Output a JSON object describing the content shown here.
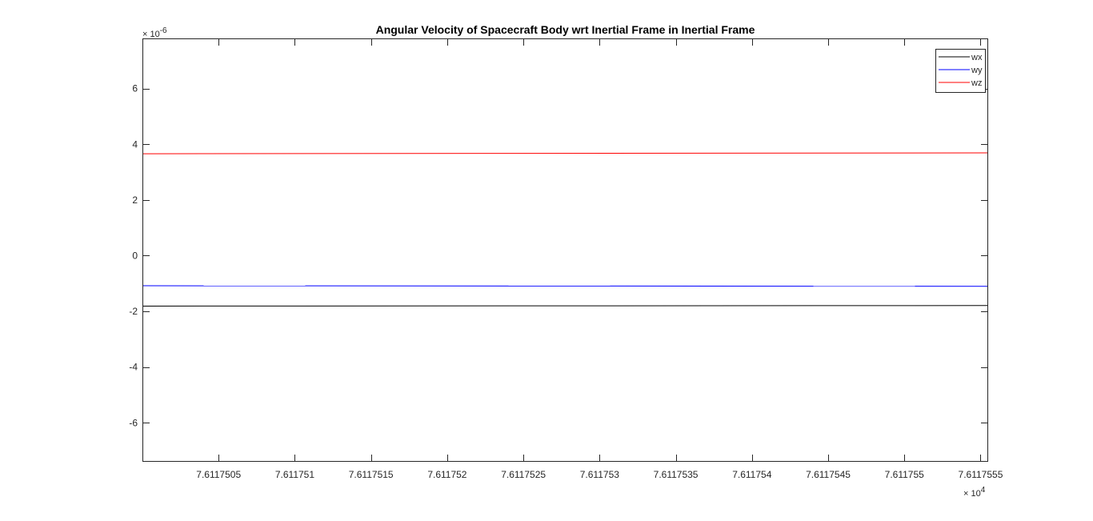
{
  "chart_data": {
    "type": "line",
    "title": "Angular Velocity of Spacecraft Body wrt Inertial Frame in Inertial Frame",
    "xlabel": "",
    "ylabel": "",
    "xlim": [
      76117.5,
      76117.5555
    ],
    "ylim": [
      -7.4,
      7.8
    ],
    "x_multiplier": {
      "base": "× 10",
      "exponent": "4"
    },
    "y_multiplier": {
      "base": "× 10",
      "exponent": "-6"
    },
    "x_ticks": [
      76117.505,
      76117.51,
      76117.515,
      76117.52,
      76117.525,
      76117.53,
      76117.535,
      76117.54,
      76117.545,
      76117.55,
      76117.555
    ],
    "x_tick_labels": [
      "7.6117505",
      "7.611751",
      "7.6117515",
      "7.611752",
      "7.6117525",
      "7.611753",
      "7.6117535",
      "7.611754",
      "7.6117545",
      "7.611755",
      "7.6117555"
    ],
    "y_ticks": [
      -6,
      -4,
      -2,
      0,
      2,
      4,
      6
    ],
    "y_tick_labels": [
      "-6",
      "-4",
      "-2",
      "0",
      "2",
      "4",
      "6"
    ],
    "grid": false,
    "legend_position": "top-right",
    "series": [
      {
        "name": "wx",
        "color": "#000000",
        "x": [
          76117.5,
          76117.5555
        ],
        "y": [
          -1.81,
          -1.79
        ]
      },
      {
        "name": "wy",
        "color": "#0000ff",
        "x": [
          76117.5,
          76117.5555
        ],
        "y": [
          -1.08,
          -1.1
        ]
      },
      {
        "name": "wz",
        "color": "#ff0000",
        "x": [
          76117.5,
          76117.5555
        ],
        "y": [
          3.66,
          3.69
        ]
      }
    ]
  }
}
